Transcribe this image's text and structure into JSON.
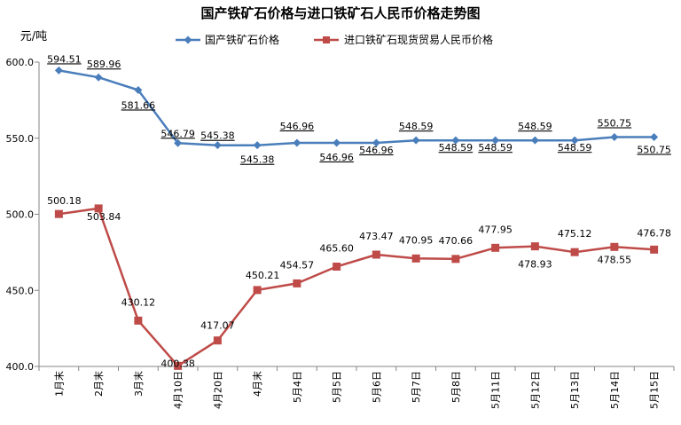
{
  "chart_data": {
    "type": "line",
    "title": "国产铁矿石价格与进口铁矿石人民币价格走势图",
    "unit_label": "元/吨",
    "categories": [
      "1月末",
      "2月末",
      "3月末",
      "4月10日",
      "4月20日",
      "4月末",
      "5月4日",
      "5月5日",
      "5月6日",
      "5月7日",
      "5月8日",
      "5月11日",
      "5月12日",
      "5月13日",
      "5月14日",
      "5月15日"
    ],
    "ylim": [
      400,
      600
    ],
    "yticks": [
      "400.0",
      "450.0",
      "500.0",
      "550.0",
      "600.0"
    ],
    "ytick_values": [
      400,
      450,
      500,
      550,
      600
    ],
    "grid": false,
    "legend_position": "top",
    "series": [
      {
        "name": "国产铁矿石价格",
        "color": "#4a7ebb",
        "marker": "diamond",
        "values": [
          594.51,
          589.96,
          581.66,
          546.79,
          545.38,
          545.38,
          546.96,
          546.96,
          546.96,
          548.59,
          548.59,
          548.59,
          548.59,
          548.59,
          550.75,
          550.75
        ],
        "labels": [
          "594.51",
          "589.96",
          "581.66",
          "546.79",
          "545.38",
          "545.38",
          "546.96",
          "546.96",
          "546.96",
          "548.59",
          "548.59",
          "548.59",
          "548.59",
          "548.59",
          "550.75",
          "550.75"
        ]
      },
      {
        "name": "进口铁矿石现货贸易人民币价格",
        "color": "#be4b48",
        "marker": "square",
        "values": [
          500.18,
          503.84,
          430.12,
          400.38,
          417.07,
          450.21,
          454.57,
          465.6,
          473.47,
          470.95,
          470.66,
          477.95,
          478.93,
          475.12,
          478.55,
          476.78
        ],
        "labels": [
          "500.18",
          "503.84",
          "430.12",
          "400.38",
          "417.07",
          "450.21",
          "454.57",
          "465.60",
          "473.47",
          "470.95",
          "470.66",
          "477.95",
          "478.93",
          "475.12",
          "478.55",
          "476.78"
        ]
      }
    ]
  }
}
